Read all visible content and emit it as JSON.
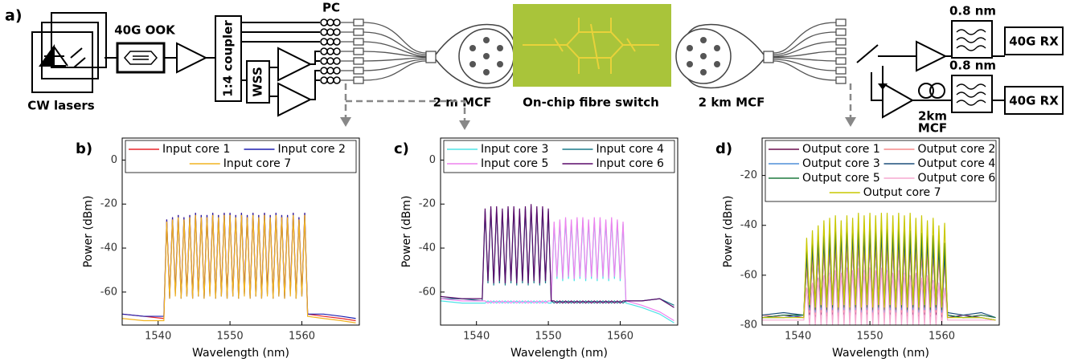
{
  "diagram": {
    "panel_label": "a)",
    "modulation": "40G OOK",
    "laser_label": "CW lasers",
    "coupler": "1:4 coupler",
    "wss": "WSS",
    "pc": "PC",
    "mcf_input": "2 m MCF",
    "chip": "On-chip fibre switch",
    "mcf_output": "2 km MCF",
    "filter_1": "0.8 nm",
    "filter_2": "0.8 nm",
    "receiver_1": "40G RX",
    "receiver_2": "40G RX",
    "spool": [
      "2km",
      "MCF"
    ]
  },
  "chart_data": [
    {
      "type": "line",
      "label": "b)",
      "x_label": "Wavelength (nm)",
      "y_label": "Power (dBm)",
      "xlim": [
        1535,
        1568
      ],
      "ylim": [
        -75,
        10
      ],
      "xticks": [
        1540,
        1550,
        1560
      ],
      "yticks": [
        -60,
        -40,
        -20,
        0
      ],
      "x": [
        1535,
        1538,
        1540.8,
        1541.2,
        1541.6,
        1542,
        1542.4,
        1542.8,
        1543.2,
        1543.6,
        1544,
        1544.4,
        1544.8,
        1545.2,
        1545.6,
        1546,
        1546.4,
        1546.8,
        1547.2,
        1547.6,
        1548,
        1548.4,
        1548.8,
        1549.2,
        1549.6,
        1550,
        1550.4,
        1550.8,
        1551.2,
        1551.6,
        1552,
        1552.4,
        1552.8,
        1553.2,
        1553.6,
        1554,
        1554.4,
        1554.8,
        1555.2,
        1555.6,
        1556,
        1556.4,
        1556.8,
        1557.2,
        1557.6,
        1558,
        1558.4,
        1558.8,
        1559.2,
        1559.6,
        1560,
        1560.4,
        1560.8,
        1563,
        1565.5,
        1567.5
      ],
      "series": [
        {
          "name": "Input core 1",
          "color": "#e8252a",
          "values": [
            -70,
            -71,
            -72,
            -27,
            -62,
            -26,
            -60,
            -25,
            -62,
            -26,
            -61,
            -25,
            -62,
            -24,
            -61,
            -25,
            -62,
            -25,
            -60,
            -24,
            -62,
            -25,
            -61,
            -24,
            -62,
            -24,
            -61,
            -25,
            -62,
            -24,
            -60,
            -25,
            -62,
            -24,
            -61,
            -25,
            -62,
            -24,
            -60,
            -25,
            -62,
            -24,
            -61,
            -25,
            -62,
            -25,
            -60,
            -24,
            -62,
            -26,
            -61,
            -24,
            -70,
            -71,
            -72,
            -73
          ]
        },
        {
          "name": "Input core 2",
          "color": "#1f1fb0",
          "values": [
            -70,
            -71,
            -71,
            -27,
            -63,
            -26,
            -61,
            -25,
            -63,
            -26,
            -62,
            -25,
            -63,
            -24,
            -62,
            -25,
            -63,
            -25,
            -61,
            -24,
            -63,
            -25,
            -62,
            -24,
            -63,
            -24,
            -62,
            -25,
            -63,
            -24,
            -61,
            -25,
            -63,
            -24,
            -62,
            -25,
            -63,
            -24,
            -61,
            -25,
            -63,
            -24,
            -62,
            -25,
            -63,
            -25,
            -61,
            -24,
            -63,
            -26,
            -62,
            -24,
            -70,
            -70,
            -71,
            -72
          ]
        },
        {
          "name": "Input core 7",
          "color": "#f2b320",
          "values": [
            -72,
            -73,
            -73,
            -28,
            -63,
            -27,
            -62,
            -26,
            -63,
            -27,
            -62,
            -26,
            -63,
            -25,
            -62,
            -26,
            -63,
            -26,
            -62,
            -25,
            -63,
            -26,
            -62,
            -25,
            -63,
            -25,
            -62,
            -26,
            -63,
            -25,
            -62,
            -26,
            -63,
            -25,
            -62,
            -26,
            -63,
            -25,
            -62,
            -26,
            -63,
            -25,
            -62,
            -26,
            -63,
            -26,
            -62,
            -25,
            -63,
            -27,
            -62,
            -25,
            -71,
            -72,
            -73,
            -74
          ]
        }
      ]
    },
    {
      "type": "line",
      "label": "c)",
      "x_label": "Wavelength (nm)",
      "y_label": "Power (dBm)",
      "xlim": [
        1535,
        1568
      ],
      "ylim": [
        -75,
        10
      ],
      "xticks": [
        1540,
        1550,
        1560
      ],
      "yticks": [
        -60,
        -40,
        -20,
        0
      ],
      "x": [
        1535,
        1538,
        1540.8,
        1541.2,
        1541.6,
        1542,
        1542.4,
        1542.8,
        1543.2,
        1543.6,
        1544,
        1544.4,
        1544.8,
        1545.2,
        1545.6,
        1546,
        1546.4,
        1546.8,
        1547.2,
        1547.6,
        1548,
        1548.4,
        1548.8,
        1549.2,
        1549.6,
        1550,
        1550.4,
        1550.8,
        1551.2,
        1551.6,
        1552,
        1552.4,
        1552.8,
        1553.2,
        1553.6,
        1554,
        1554.4,
        1554.8,
        1555.2,
        1555.6,
        1556,
        1556.4,
        1556.8,
        1557.2,
        1557.6,
        1558,
        1558.4,
        1558.8,
        1559.2,
        1559.6,
        1560,
        1560.4,
        1560.8,
        1563,
        1565.5,
        1567.5
      ],
      "series": [
        {
          "name": "Input core 3",
          "color": "#4fe3e6",
          "values": [
            -64,
            -65,
            -65,
            -65,
            -64,
            -65,
            -64,
            -65,
            -64,
            -65,
            -64,
            -65,
            -64,
            -65,
            -64,
            -65,
            -64,
            -65,
            -64,
            -65,
            -64,
            -65,
            -64,
            -65,
            -64,
            -65,
            -65,
            -29,
            -54,
            -28,
            -55,
            -27,
            -54,
            -28,
            -55,
            -27,
            -54,
            -27,
            -55,
            -28,
            -54,
            -27,
            -55,
            -27,
            -54,
            -28,
            -55,
            -27,
            -54,
            -28,
            -55,
            -29,
            -65,
            -67,
            -70,
            -74
          ]
        },
        {
          "name": "Input core 4",
          "color": "#1a7a8a",
          "values": [
            -63,
            -63,
            -64,
            -23,
            -56,
            -22,
            -57,
            -22,
            -56,
            -23,
            -57,
            -22,
            -56,
            -22,
            -57,
            -23,
            -56,
            -22,
            -57,
            -21,
            -56,
            -22,
            -57,
            -22,
            -56,
            -23,
            -64,
            -65,
            -64,
            -65,
            -64,
            -65,
            -64,
            -65,
            -64,
            -65,
            -64,
            -65,
            -64,
            -65,
            -64,
            -65,
            -64,
            -65,
            -64,
            -65,
            -64,
            -65,
            -64,
            -65,
            -64,
            -65,
            -64,
            -64,
            -63,
            -66
          ]
        },
        {
          "name": "Input core 5",
          "color": "#ee82ee",
          "values": [
            -63,
            -64,
            -64,
            -64,
            -65,
            -64,
            -65,
            -64,
            -65,
            -64,
            -65,
            -64,
            -65,
            -64,
            -65,
            -64,
            -65,
            -64,
            -65,
            -64,
            -65,
            -64,
            -65,
            -64,
            -65,
            -64,
            -64,
            -28,
            -53,
            -27,
            -54,
            -26,
            -53,
            -27,
            -54,
            -26,
            -53,
            -26,
            -54,
            -27,
            -53,
            -26,
            -54,
            -26,
            -53,
            -27,
            -54,
            -26,
            -53,
            -27,
            -54,
            -28,
            -64,
            -66,
            -69,
            -73
          ]
        },
        {
          "name": "Input core 6",
          "color": "#5a0a6a",
          "values": [
            -62,
            -63,
            -63,
            -22,
            -55,
            -21,
            -56,
            -21,
            -55,
            -22,
            -56,
            -21,
            -55,
            -21,
            -56,
            -22,
            -55,
            -21,
            -56,
            -20,
            -55,
            -21,
            -56,
            -21,
            -55,
            -22,
            -64,
            -64,
            -65,
            -64,
            -65,
            -64,
            -65,
            -64,
            -65,
            -64,
            -65,
            -64,
            -65,
            -64,
            -65,
            -64,
            -65,
            -64,
            -65,
            -64,
            -65,
            -64,
            -65,
            -64,
            -65,
            -64,
            -64,
            -64,
            -63,
            -67
          ]
        }
      ]
    },
    {
      "type": "line",
      "label": "d)",
      "x_label": "Wavelength (nm)",
      "y_label": "Power (dBm)",
      "xlim": [
        1535,
        1568
      ],
      "ylim": [
        -80,
        -5
      ],
      "xticks": [
        1540,
        1550,
        1560
      ],
      "yticks": [
        -80,
        -60,
        -40,
        -20
      ],
      "x": [
        1535,
        1538,
        1540.8,
        1541.2,
        1541.6,
        1542,
        1542.4,
        1542.8,
        1543.2,
        1543.6,
        1544,
        1544.4,
        1544.8,
        1545.2,
        1545.6,
        1546,
        1546.4,
        1546.8,
        1547.2,
        1547.6,
        1548,
        1548.4,
        1548.8,
        1549.2,
        1549.6,
        1550,
        1550.4,
        1550.8,
        1551.2,
        1551.6,
        1552,
        1552.4,
        1552.8,
        1553.2,
        1553.6,
        1554,
        1554.4,
        1554.8,
        1555.2,
        1555.6,
        1556,
        1556.4,
        1556.8,
        1557.2,
        1557.6,
        1558,
        1558.4,
        1558.8,
        1559.2,
        1559.6,
        1560,
        1560.4,
        1560.8,
        1563,
        1565.5,
        1567.5
      ],
      "series": [
        {
          "name": "Output core 1",
          "color": "#6b0f4f",
          "values": [
            -77,
            -76,
            -77,
            -55,
            -76,
            -52,
            -77,
            -50,
            -76,
            -49,
            -77,
            -48,
            -76,
            -47,
            -77,
            -48,
            -76,
            -46,
            -77,
            -47,
            -76,
            -45,
            -77,
            -46,
            -76,
            -45,
            -77,
            -46,
            -76,
            -45,
            -77,
            -46,
            -76,
            -47,
            -77,
            -46,
            -76,
            -47,
            -77,
            -48,
            -76,
            -47,
            -77,
            -49,
            -76,
            -48,
            -77,
            -50,
            -76,
            -51,
            -77,
            -53,
            -77,
            -76,
            -77,
            -78
          ]
        },
        {
          "name": "Output core 2",
          "color": "#f58a8a",
          "values": [
            -76,
            -77,
            -76,
            -56,
            -75,
            -53,
            -76,
            -51,
            -75,
            -50,
            -76,
            -49,
            -75,
            -48,
            -76,
            -49,
            -75,
            -47,
            -76,
            -48,
            -75,
            -47,
            -76,
            -48,
            -75,
            -47,
            -76,
            -48,
            -75,
            -47,
            -76,
            -48,
            -75,
            -49,
            -76,
            -48,
            -75,
            -49,
            -76,
            -50,
            -75,
            -49,
            -76,
            -51,
            -75,
            -50,
            -76,
            -52,
            -75,
            -53,
            -76,
            -55,
            -76,
            -77,
            -76,
            -77
          ]
        },
        {
          "name": "Output core 3",
          "color": "#4f8fd8",
          "values": [
            -77,
            -77,
            -76,
            -50,
            -74,
            -47,
            -75,
            -45,
            -74,
            -44,
            -75,
            -43,
            -74,
            -42,
            -75,
            -43,
            -74,
            -41,
            -75,
            -42,
            -74,
            -41,
            -75,
            -42,
            -74,
            -41,
            -75,
            -42,
            -74,
            -41,
            -75,
            -42,
            -74,
            -43,
            -75,
            -42,
            -74,
            -43,
            -75,
            -44,
            -74,
            -43,
            -75,
            -45,
            -74,
            -44,
            -75,
            -46,
            -74,
            -47,
            -75,
            -49,
            -76,
            -77,
            -77,
            -78
          ]
        },
        {
          "name": "Output core 4",
          "color": "#1b4f7a",
          "values": [
            -76,
            -75,
            -76,
            -53,
            -70,
            -50,
            -71,
            -48,
            -70,
            -47,
            -71,
            -46,
            -70,
            -45,
            -71,
            -46,
            -70,
            -44,
            -71,
            -45,
            -70,
            -44,
            -71,
            -45,
            -70,
            -44,
            -71,
            -45,
            -70,
            -44,
            -71,
            -45,
            -70,
            -46,
            -71,
            -45,
            -70,
            -46,
            -71,
            -47,
            -70,
            -46,
            -71,
            -48,
            -70,
            -47,
            -71,
            -49,
            -70,
            -50,
            -71,
            -52,
            -75,
            -76,
            -75,
            -77
          ]
        },
        {
          "name": "Output core 5",
          "color": "#1f7a3f",
          "values": [
            -77,
            -76,
            -76,
            -48,
            -73,
            -45,
            -74,
            -43,
            -73,
            -42,
            -74,
            -41,
            -73,
            -40,
            -74,
            -41,
            -73,
            -39,
            -74,
            -40,
            -73,
            -39,
            -74,
            -40,
            -73,
            -39,
            -74,
            -40,
            -73,
            -39,
            -74,
            -40,
            -73,
            -41,
            -74,
            -40,
            -73,
            -41,
            -74,
            -42,
            -73,
            -41,
            -74,
            -43,
            -73,
            -42,
            -74,
            -44,
            -73,
            -45,
            -74,
            -47,
            -76,
            -77,
            -76,
            -77
          ]
        },
        {
          "name": "Output core 6",
          "color": "#f5a8d0",
          "values": [
            -78,
            -78,
            -78,
            -65,
            -80,
            -63,
            -80,
            -61,
            -80,
            -60,
            -80,
            -59,
            -80,
            -58,
            -80,
            -59,
            -80,
            -57,
            -80,
            -58,
            -80,
            -57,
            -80,
            -58,
            -80,
            -57,
            -80,
            -58,
            -80,
            -57,
            -80,
            -58,
            -80,
            -59,
            -80,
            -58,
            -80,
            -59,
            -80,
            -60,
            -80,
            -59,
            -80,
            -61,
            -80,
            -60,
            -80,
            -62,
            -80,
            -63,
            -80,
            -65,
            -78,
            -78,
            -78,
            -78
          ]
        },
        {
          "name": "Output core 7",
          "color": "#c8c800",
          "values": [
            -77,
            -77,
            -77,
            -45,
            -72,
            -42,
            -73,
            -40,
            -72,
            -38,
            -73,
            -37,
            -72,
            -36,
            -73,
            -38,
            -72,
            -36,
            -73,
            -37,
            -72,
            -35,
            -73,
            -36,
            -72,
            -35,
            -73,
            -36,
            -72,
            -35,
            -73,
            -35,
            -72,
            -36,
            -73,
            -35,
            -72,
            -36,
            -73,
            -35,
            -72,
            -37,
            -73,
            -36,
            -72,
            -38,
            -73,
            -37,
            -72,
            -40,
            -73,
            -39,
            -77,
            -77,
            -77,
            -78
          ]
        }
      ]
    }
  ]
}
